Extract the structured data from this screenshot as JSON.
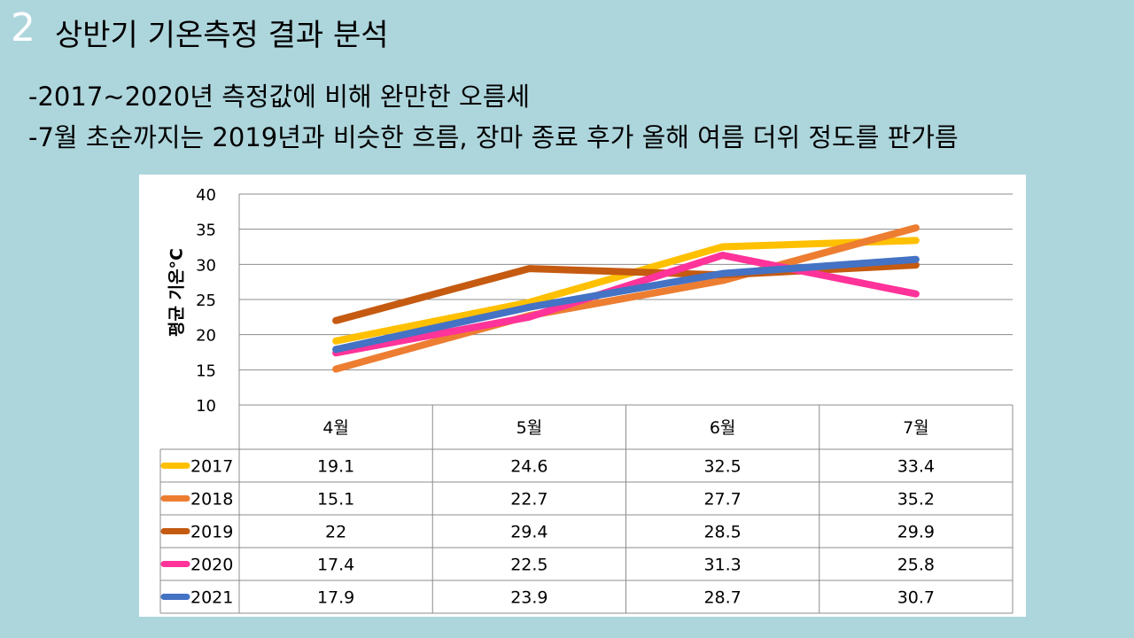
{
  "slide": {
    "number": "2",
    "title": "상반기 기온측정 결과 분석",
    "bullets": [
      "-2017~2020년 측정값에 비해 완만한 오름세",
      "-7월 초순까지는 2019년과 비슷한 흐름, 장마 종료 후가 올해 여름 더위 정도를 판가름"
    ]
  },
  "chart_data": {
    "type": "line",
    "title": "",
    "xlabel": "",
    "ylabel": "평균 기온°C",
    "ylim": [
      10,
      40
    ],
    "yticks": [
      10,
      15,
      20,
      25,
      30,
      35,
      40
    ],
    "categories": [
      "4월",
      "5월",
      "6월",
      "7월"
    ],
    "grid": true,
    "data_table": true,
    "series": [
      {
        "name": "2017",
        "color": "#ffc000",
        "values": [
          19.1,
          24.6,
          32.5,
          33.4
        ]
      },
      {
        "name": "2018",
        "color": "#ed7d31",
        "values": [
          15.1,
          22.7,
          27.7,
          35.2
        ]
      },
      {
        "name": "2019",
        "color": "#c55a11",
        "values": [
          22,
          29.4,
          28.5,
          29.9
        ]
      },
      {
        "name": "2020",
        "color": "#ff3399",
        "values": [
          17.4,
          22.5,
          31.3,
          25.8
        ]
      },
      {
        "name": "2021",
        "color": "#4472c4",
        "values": [
          17.9,
          23.9,
          28.7,
          30.7
        ]
      }
    ]
  }
}
